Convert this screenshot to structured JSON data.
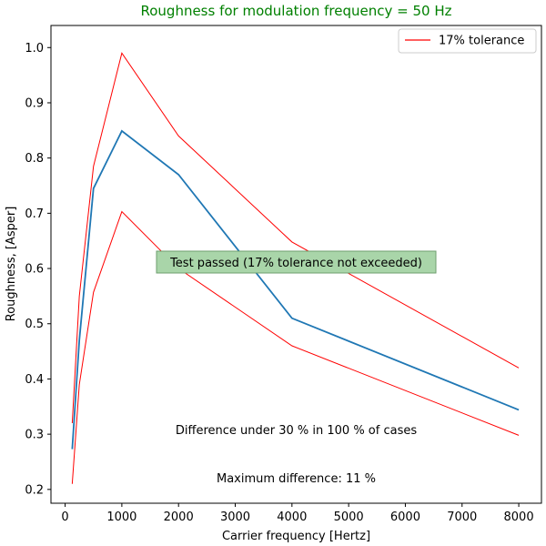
{
  "chart_data": {
    "type": "line",
    "title": "Roughness for modulation frequency = 50 Hz",
    "title_color": "#008000",
    "xlabel": "Carrier frequency [Hertz]",
    "ylabel": "Roughness, [Asper]",
    "xlim": [
      -250,
      8400
    ],
    "ylim": [
      0.175,
      1.04
    ],
    "xticks": [
      0,
      1000,
      2000,
      3000,
      4000,
      5000,
      6000,
      7000,
      8000
    ],
    "xtick_labels": [
      "0",
      "1000",
      "2000",
      "3000",
      "4000",
      "5000",
      "6000",
      "7000",
      "8000"
    ],
    "yticks": [
      0.2,
      0.3,
      0.4,
      0.5,
      0.6,
      0.7,
      0.8,
      0.9,
      1.0
    ],
    "ytick_labels": [
      "0.2",
      "0.3",
      "0.4",
      "0.5",
      "0.6",
      "0.7",
      "0.8",
      "0.9",
      "1.0"
    ],
    "grid": false,
    "legend_position": "top-right",
    "series": [
      {
        "key": "upper",
        "name": "17% tolerance",
        "color": "#ff0000",
        "width": 1,
        "x": [
          125,
          250,
          500,
          1000,
          2000,
          4000,
          8000
        ],
        "y": [
          0.32,
          0.55,
          0.785,
          0.99,
          0.84,
          0.648,
          0.42
        ]
      },
      {
        "key": "measured",
        "color": "#1f77b4",
        "width": 1.8,
        "x": [
          125,
          250,
          500,
          1000,
          2000,
          4000,
          8000
        ],
        "y": [
          0.273,
          0.47,
          0.745,
          0.849,
          0.77,
          0.51,
          0.344
        ]
      },
      {
        "key": "lower",
        "color": "#ff0000",
        "width": 1,
        "x": [
          125,
          250,
          500,
          1000,
          2000,
          4000,
          8000
        ],
        "y": [
          0.21,
          0.39,
          0.557,
          0.703,
          0.6,
          0.46,
          0.298
        ]
      }
    ],
    "annotations": {
      "status": "Test passed (17% tolerance not exceeded)",
      "status_bg": "#a9d5a9",
      "difference": "Difference under 30 % in 100 % of cases",
      "max_difference": "Maximum difference: 11 %"
    }
  }
}
